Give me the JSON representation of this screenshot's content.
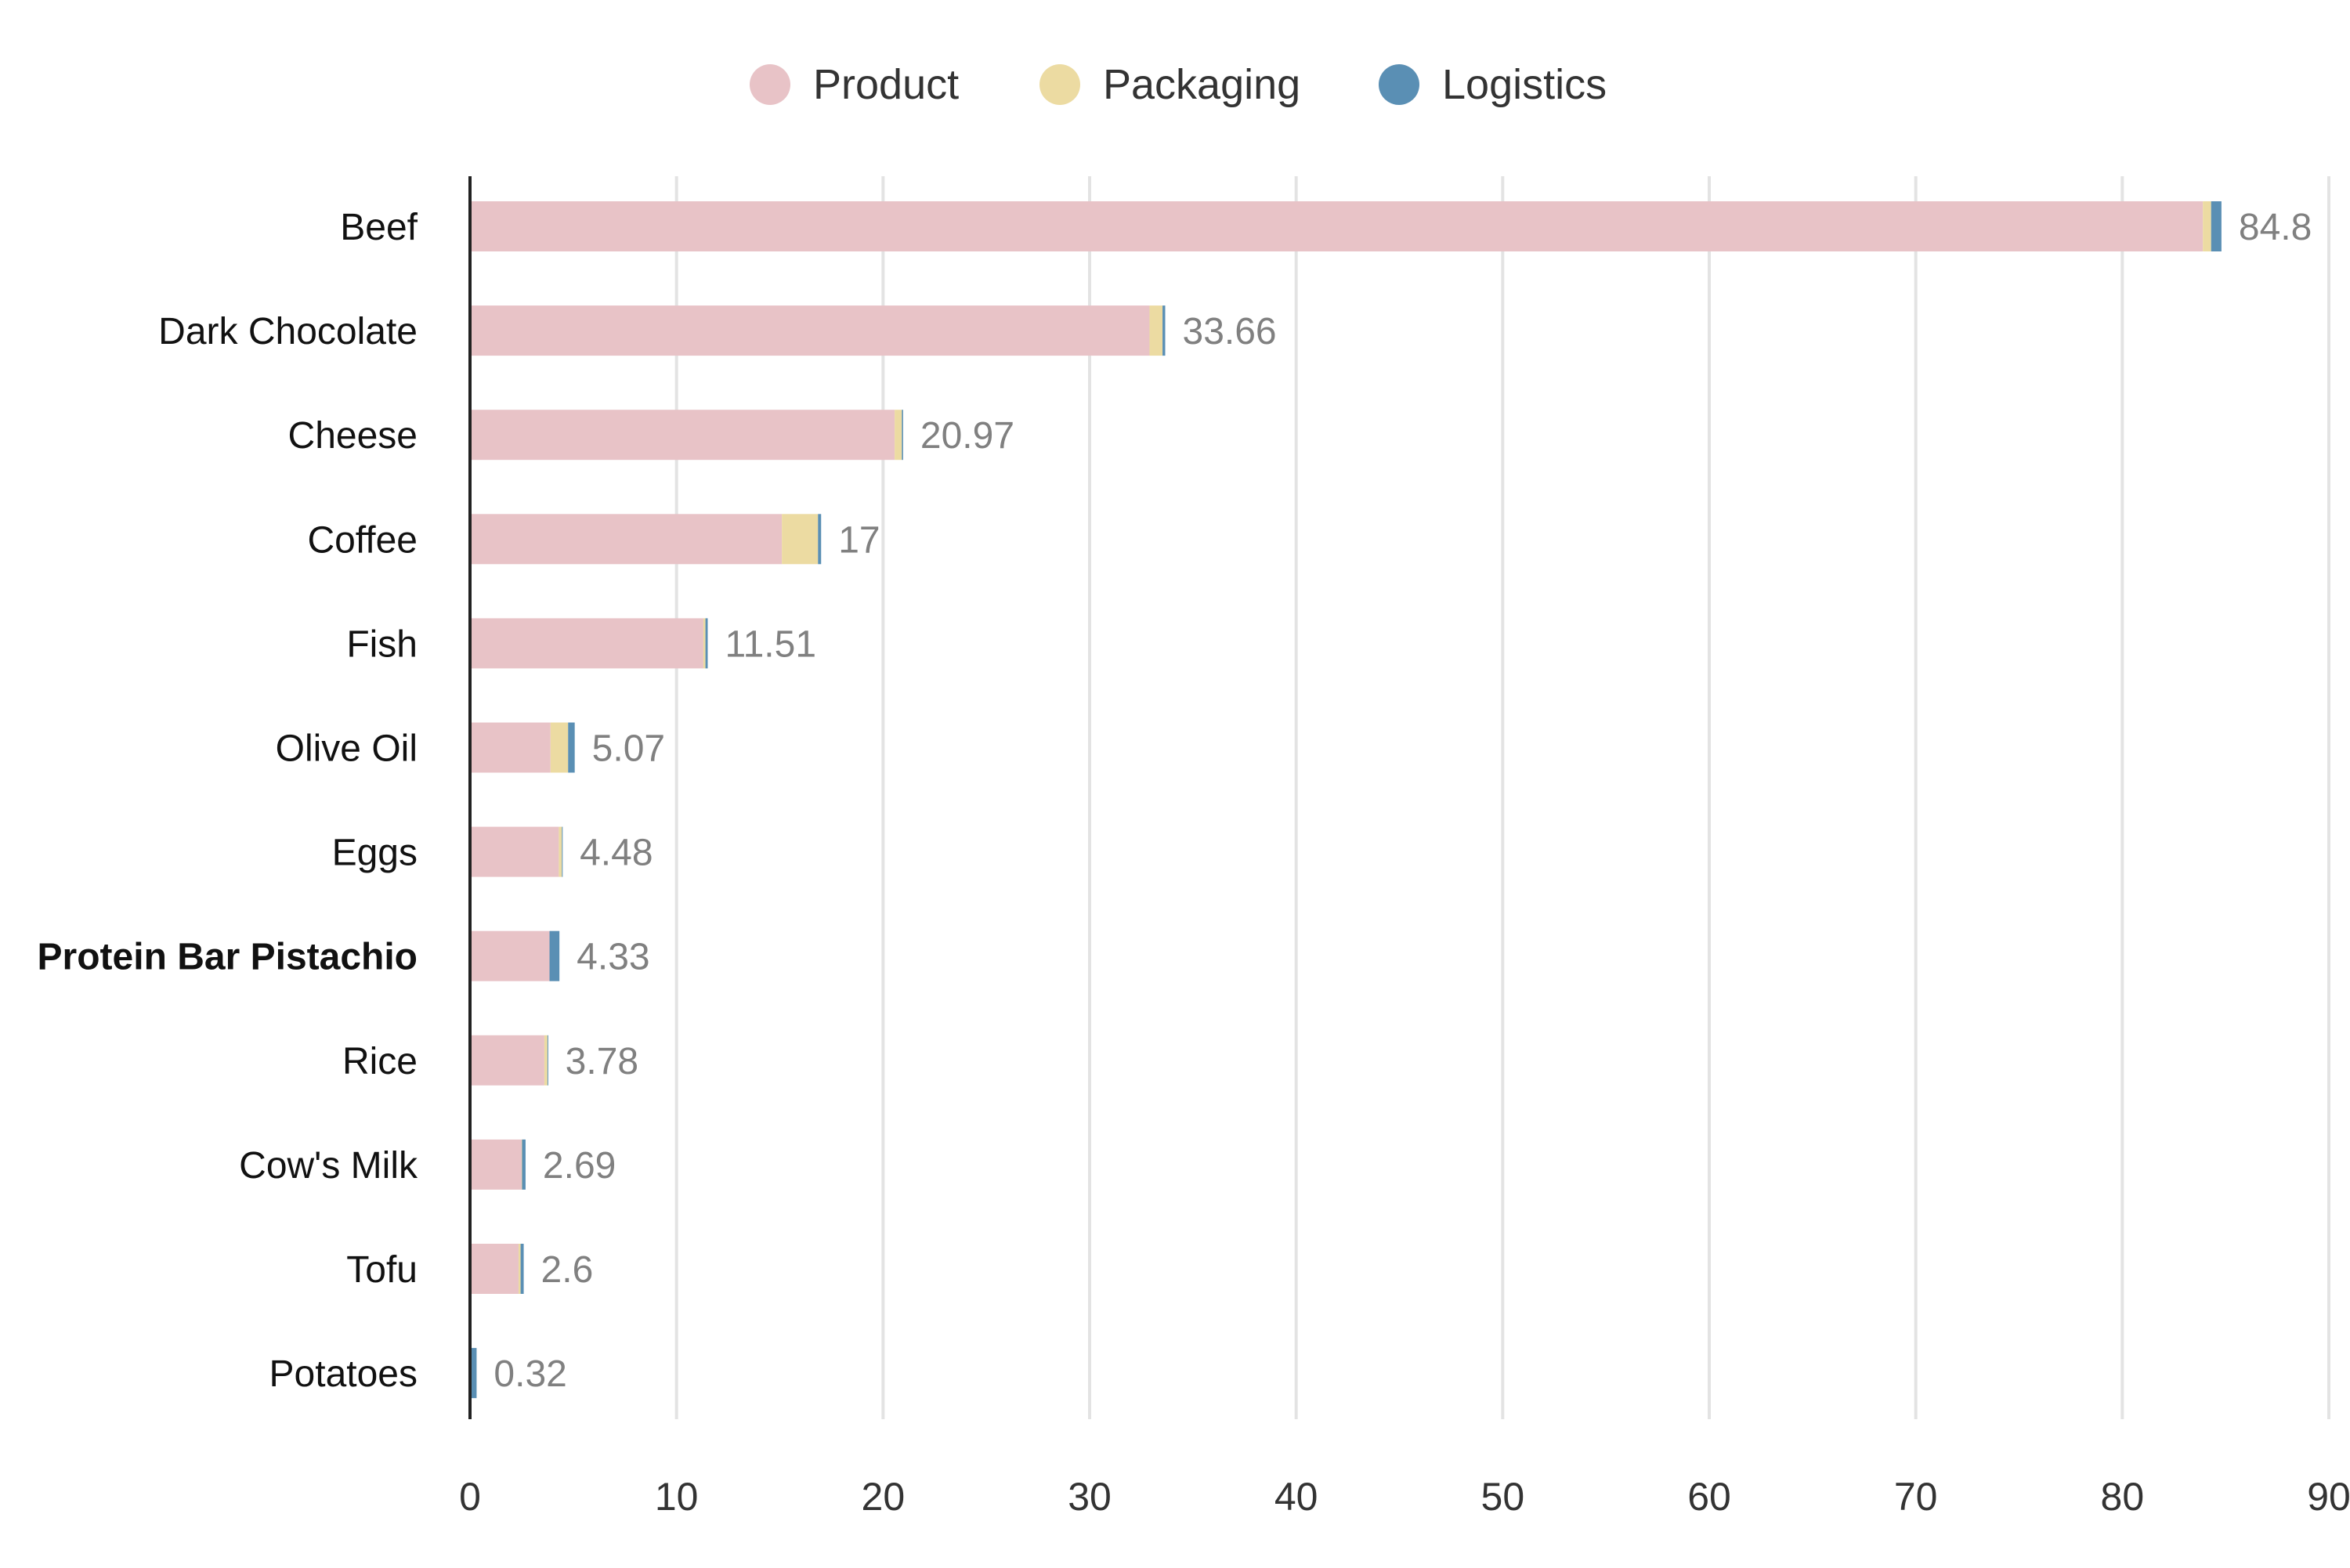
{
  "chart_data": {
    "type": "bar",
    "orientation": "horizontal",
    "stacked": true,
    "title": "",
    "xlabel": "",
    "ylabel": "",
    "xlim": [
      0,
      90
    ],
    "x_ticks": [
      0,
      10,
      20,
      30,
      40,
      50,
      60,
      70,
      80,
      90
    ],
    "grid": "vertical",
    "legend_position": "top-center",
    "categories": [
      "Beef",
      "Dark Chocolate",
      "Cheese",
      "Coffee",
      "Fish",
      "Olive Oil",
      "Eggs",
      "Protein Bar Pistachio",
      "Rice",
      "Cow's Milk",
      "Tofu",
      "Potatoes"
    ],
    "highlighted_category": "Protein Bar Pistachio",
    "totals": [
      "84.8",
      "33.66",
      "20.97",
      "17",
      "11.51",
      "5.07",
      "4.48",
      "4.33",
      "3.78",
      "2.69",
      "2.6",
      "0.32"
    ],
    "series": [
      {
        "name": "Product",
        "color": "#e8c3c7",
        "values": [
          83.9,
          32.9,
          20.56,
          15.1,
          11.3,
          3.9,
          4.3,
          3.85,
          3.6,
          2.5,
          2.35,
          0.05
        ]
      },
      {
        "name": "Packaging",
        "color": "#ecdba2",
        "values": [
          0.4,
          0.63,
          0.35,
          1.75,
          0.1,
          0.85,
          0.15,
          0.0,
          0.15,
          0.02,
          0.1,
          0.02
        ]
      },
      {
        "name": "Logistics",
        "color": "#5a8fb4",
        "values": [
          0.5,
          0.13,
          0.06,
          0.15,
          0.11,
          0.32,
          0.03,
          0.48,
          0.03,
          0.17,
          0.15,
          0.25
        ]
      }
    ]
  }
}
